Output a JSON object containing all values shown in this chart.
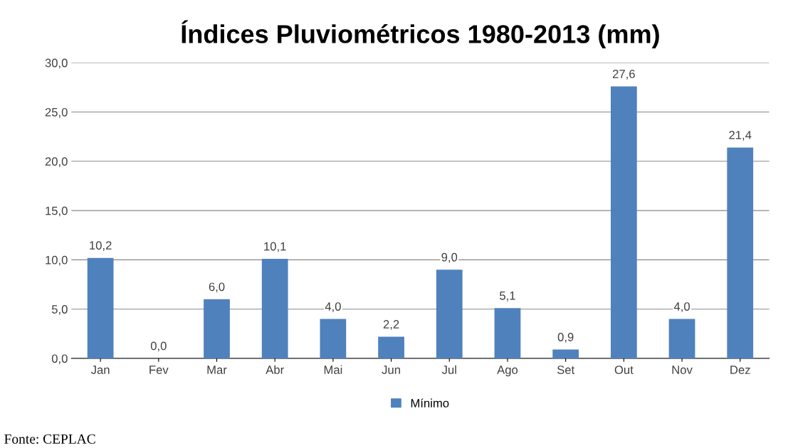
{
  "chart_data": {
    "type": "bar",
    "title": "Índices Pluviométricos 1980-2013 (mm)",
    "categories": [
      "Jan",
      "Fev",
      "Mar",
      "Abr",
      "Mai",
      "Jun",
      "Jul",
      "Ago",
      "Set",
      "Out",
      "Nov",
      "Dez"
    ],
    "series": [
      {
        "name": "Mínimo",
        "color": "#4f81bd",
        "values": [
          10.2,
          0.0,
          6.0,
          10.1,
          4.0,
          2.2,
          9.0,
          5.1,
          0.9,
          27.6,
          4.0,
          21.4
        ],
        "value_labels": [
          "10,2",
          "0,0",
          "6,0",
          "10,1",
          "4,0",
          "2,2",
          "9,0",
          "5,1",
          "0,9",
          "27,6",
          "4,0",
          "21,4"
        ]
      }
    ],
    "ylim": [
      0,
      30
    ],
    "yticks": [
      {
        "value": 0,
        "label": "0,0"
      },
      {
        "value": 5,
        "label": "5,0"
      },
      {
        "value": 10,
        "label": "10,0"
      },
      {
        "value": 15,
        "label": "15,0"
      },
      {
        "value": 20,
        "label": "20,0"
      },
      {
        "value": 25,
        "label": "25,0"
      },
      {
        "value": 30,
        "label": "30,0"
      }
    ],
    "grid": "y",
    "legend": "bottom",
    "annotations": [
      "Fonte: CEPLAC"
    ]
  }
}
